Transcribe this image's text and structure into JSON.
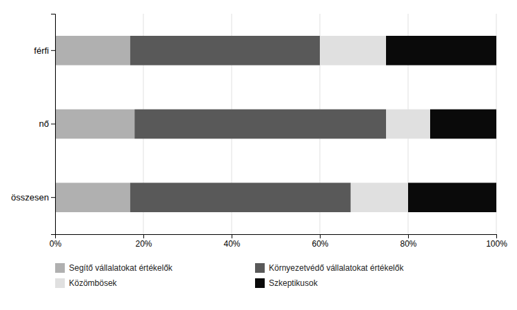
{
  "chart_data": {
    "type": "bar",
    "orientation": "horizontal",
    "stacked": true,
    "categories": [
      "férfi",
      "nő",
      "összesen"
    ],
    "series": [
      {
        "name": "Segítő vállalatokat értékelők",
        "color": "#b0b0b0",
        "values": [
          17.0,
          18.0,
          17.0
        ]
      },
      {
        "name": "Környezetvédő vállalatokat értékelők",
        "color": "#595959",
        "values": [
          43.0,
          57.0,
          50.0
        ]
      },
      {
        "name": "Közömbösek",
        "color": "#e0e0e0",
        "values": [
          15.0,
          10.0,
          13.0
        ]
      },
      {
        "name": "Szkeptikusok",
        "color": "#0a0a0a",
        "values": [
          25.0,
          15.0,
          20.0
        ]
      }
    ],
    "xlim": [
      0,
      100
    ],
    "xticks": [
      {
        "value": 0,
        "label": "0%"
      },
      {
        "value": 20,
        "label": "20%"
      },
      {
        "value": 40,
        "label": "40%"
      },
      {
        "value": 60,
        "label": "60%"
      },
      {
        "value": 80,
        "label": "80%"
      },
      {
        "value": 100,
        "label": "100%"
      }
    ],
    "grid": true,
    "legend": "bottom"
  }
}
